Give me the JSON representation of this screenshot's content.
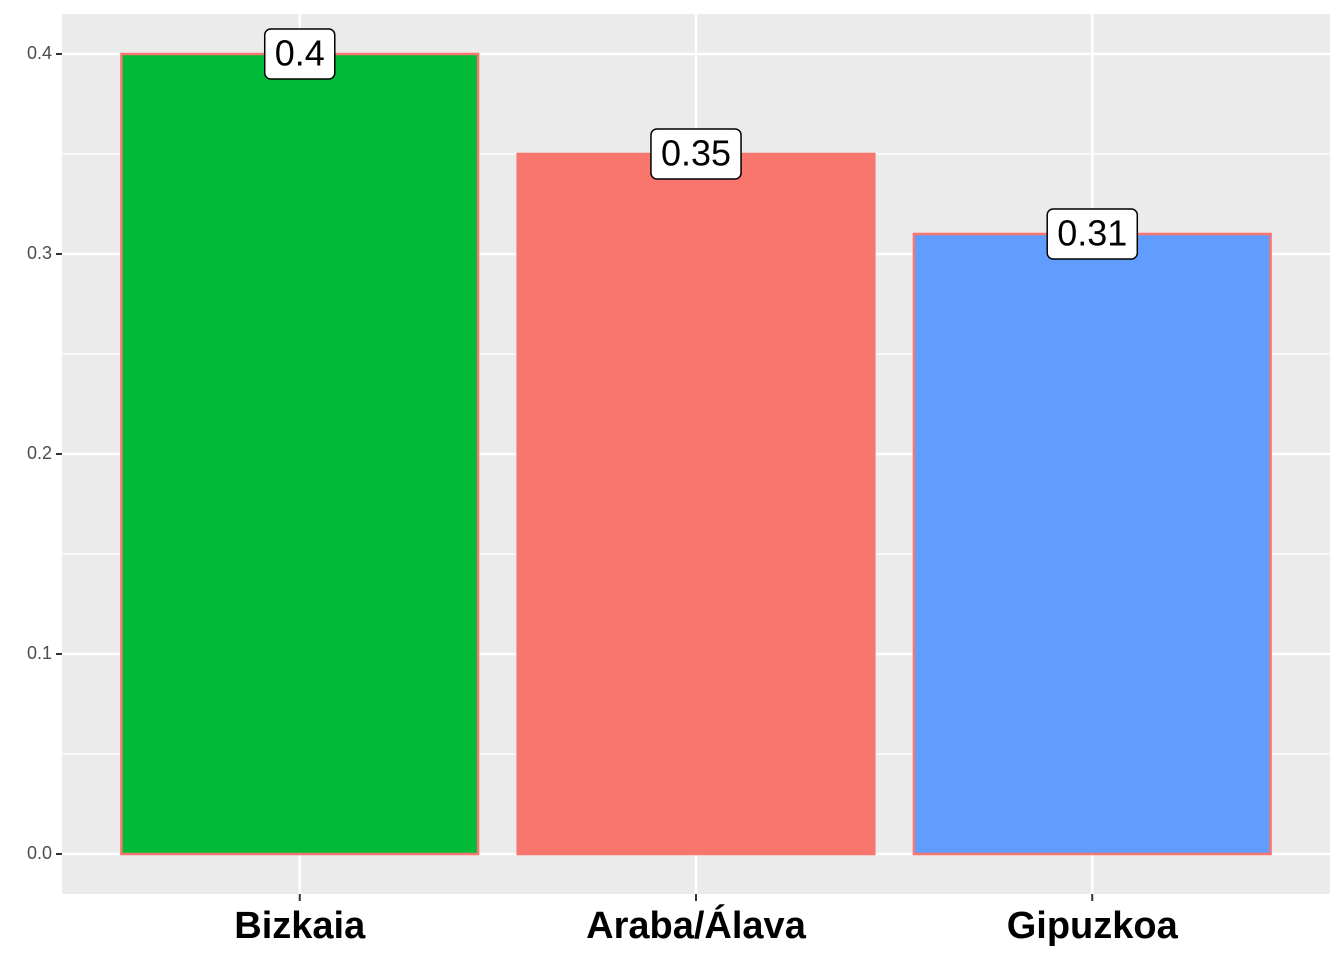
{
  "chart_data": {
    "type": "bar",
    "categories": [
      "Bizkaia",
      "Araba/Álava",
      "Gipuzkoa"
    ],
    "values": [
      0.4,
      0.35,
      0.31
    ],
    "colors": [
      "#00BA38",
      "#F8766D",
      "#619CFF"
    ],
    "edge_color": "#F8766D",
    "ylim": [
      -0.02,
      0.42
    ],
    "yticks": [
      {
        "value": 0,
        "label": "0.0"
      },
      0.1,
      0.2,
      0.3,
      0.4
    ],
    "minor_yticks": [
      0.05,
      0.15,
      0.25,
      0.35
    ],
    "grid": true
  }
}
